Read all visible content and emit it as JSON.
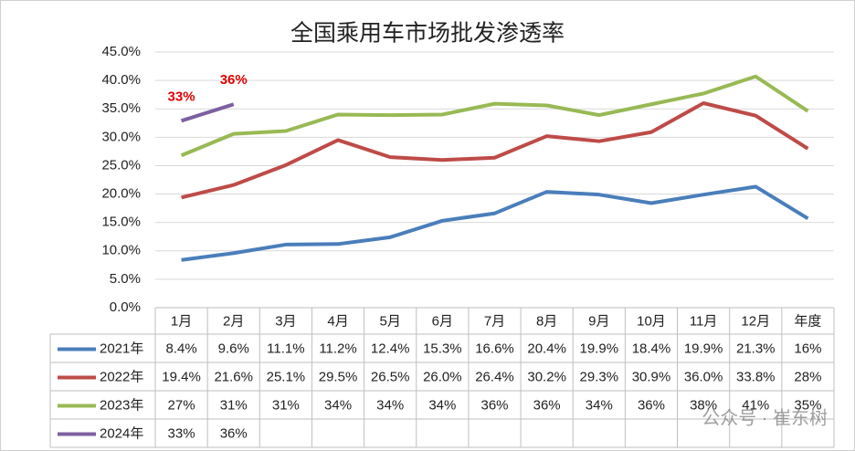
{
  "chart_data": {
    "type": "line",
    "title": "全国乘用车市场批发渗透率",
    "categories": [
      "1月",
      "2月",
      "3月",
      "4月",
      "5月",
      "6月",
      "7月",
      "8月",
      "9月",
      "10月",
      "11月",
      "12月",
      "年度"
    ],
    "series": [
      {
        "name": "2021年",
        "color": "#4a7ebb",
        "values": [
          8.4,
          9.6,
          11.1,
          11.2,
          12.4,
          15.3,
          16.6,
          20.4,
          19.9,
          18.4,
          19.9,
          21.3,
          15.7
        ],
        "value_labels": [
          "8.4%",
          "9.6%",
          "11.1%",
          "11.2%",
          "12.4%",
          "15.3%",
          "16.6%",
          "20.4%",
          "19.9%",
          "18.4%",
          "19.9%",
          "21.3%",
          "16%"
        ]
      },
      {
        "name": "2022年",
        "color": "#be4b48",
        "values": [
          19.4,
          21.6,
          25.1,
          29.5,
          26.5,
          26.0,
          26.4,
          30.2,
          29.3,
          30.9,
          36.0,
          33.8,
          28.0
        ],
        "value_labels": [
          "19.4%",
          "21.6%",
          "25.1%",
          "29.5%",
          "26.5%",
          "26.0%",
          "26.4%",
          "30.2%",
          "29.3%",
          "30.9%",
          "36.0%",
          "33.8%",
          "28%"
        ]
      },
      {
        "name": "2023年",
        "color": "#98b954",
        "values": [
          26.8,
          30.6,
          31.1,
          34.0,
          33.9,
          34.0,
          35.9,
          35.6,
          33.9,
          35.8,
          37.7,
          40.7,
          34.6
        ],
        "value_labels": [
          "27%",
          "31%",
          "31%",
          "34%",
          "34%",
          "34%",
          "36%",
          "36%",
          "34%",
          "36%",
          "38%",
          "41%",
          "35%"
        ]
      },
      {
        "name": "2024年",
        "color": "#7d60a0",
        "values": [
          32.9,
          35.8,
          null,
          null,
          null,
          null,
          null,
          null,
          null,
          null,
          null,
          null,
          null
        ],
        "value_labels": [
          "33%",
          "36%",
          null,
          null,
          null,
          null,
          null,
          null,
          null,
          null,
          null,
          null,
          null
        ],
        "data_labels": true
      }
    ],
    "data_label_color": "#e00000",
    "ylim": [
      0,
      45
    ],
    "yticks": [
      {
        "value": 0,
        "label": "0.0%"
      },
      {
        "value": 5,
        "label": "5.0%"
      },
      {
        "value": 10,
        "label": "10.0%"
      },
      {
        "value": 15,
        "label": "15.0%"
      },
      {
        "value": 20,
        "label": "20.0%"
      },
      {
        "value": 25,
        "label": "25.0%"
      },
      {
        "value": 30,
        "label": "30.0%"
      },
      {
        "value": 35,
        "label": "35.0%"
      },
      {
        "value": 40,
        "label": "40.0%"
      },
      {
        "value": 45,
        "label": "45.0%"
      }
    ],
    "grid": true,
    "watermark": "公众号 · 崔东树"
  }
}
